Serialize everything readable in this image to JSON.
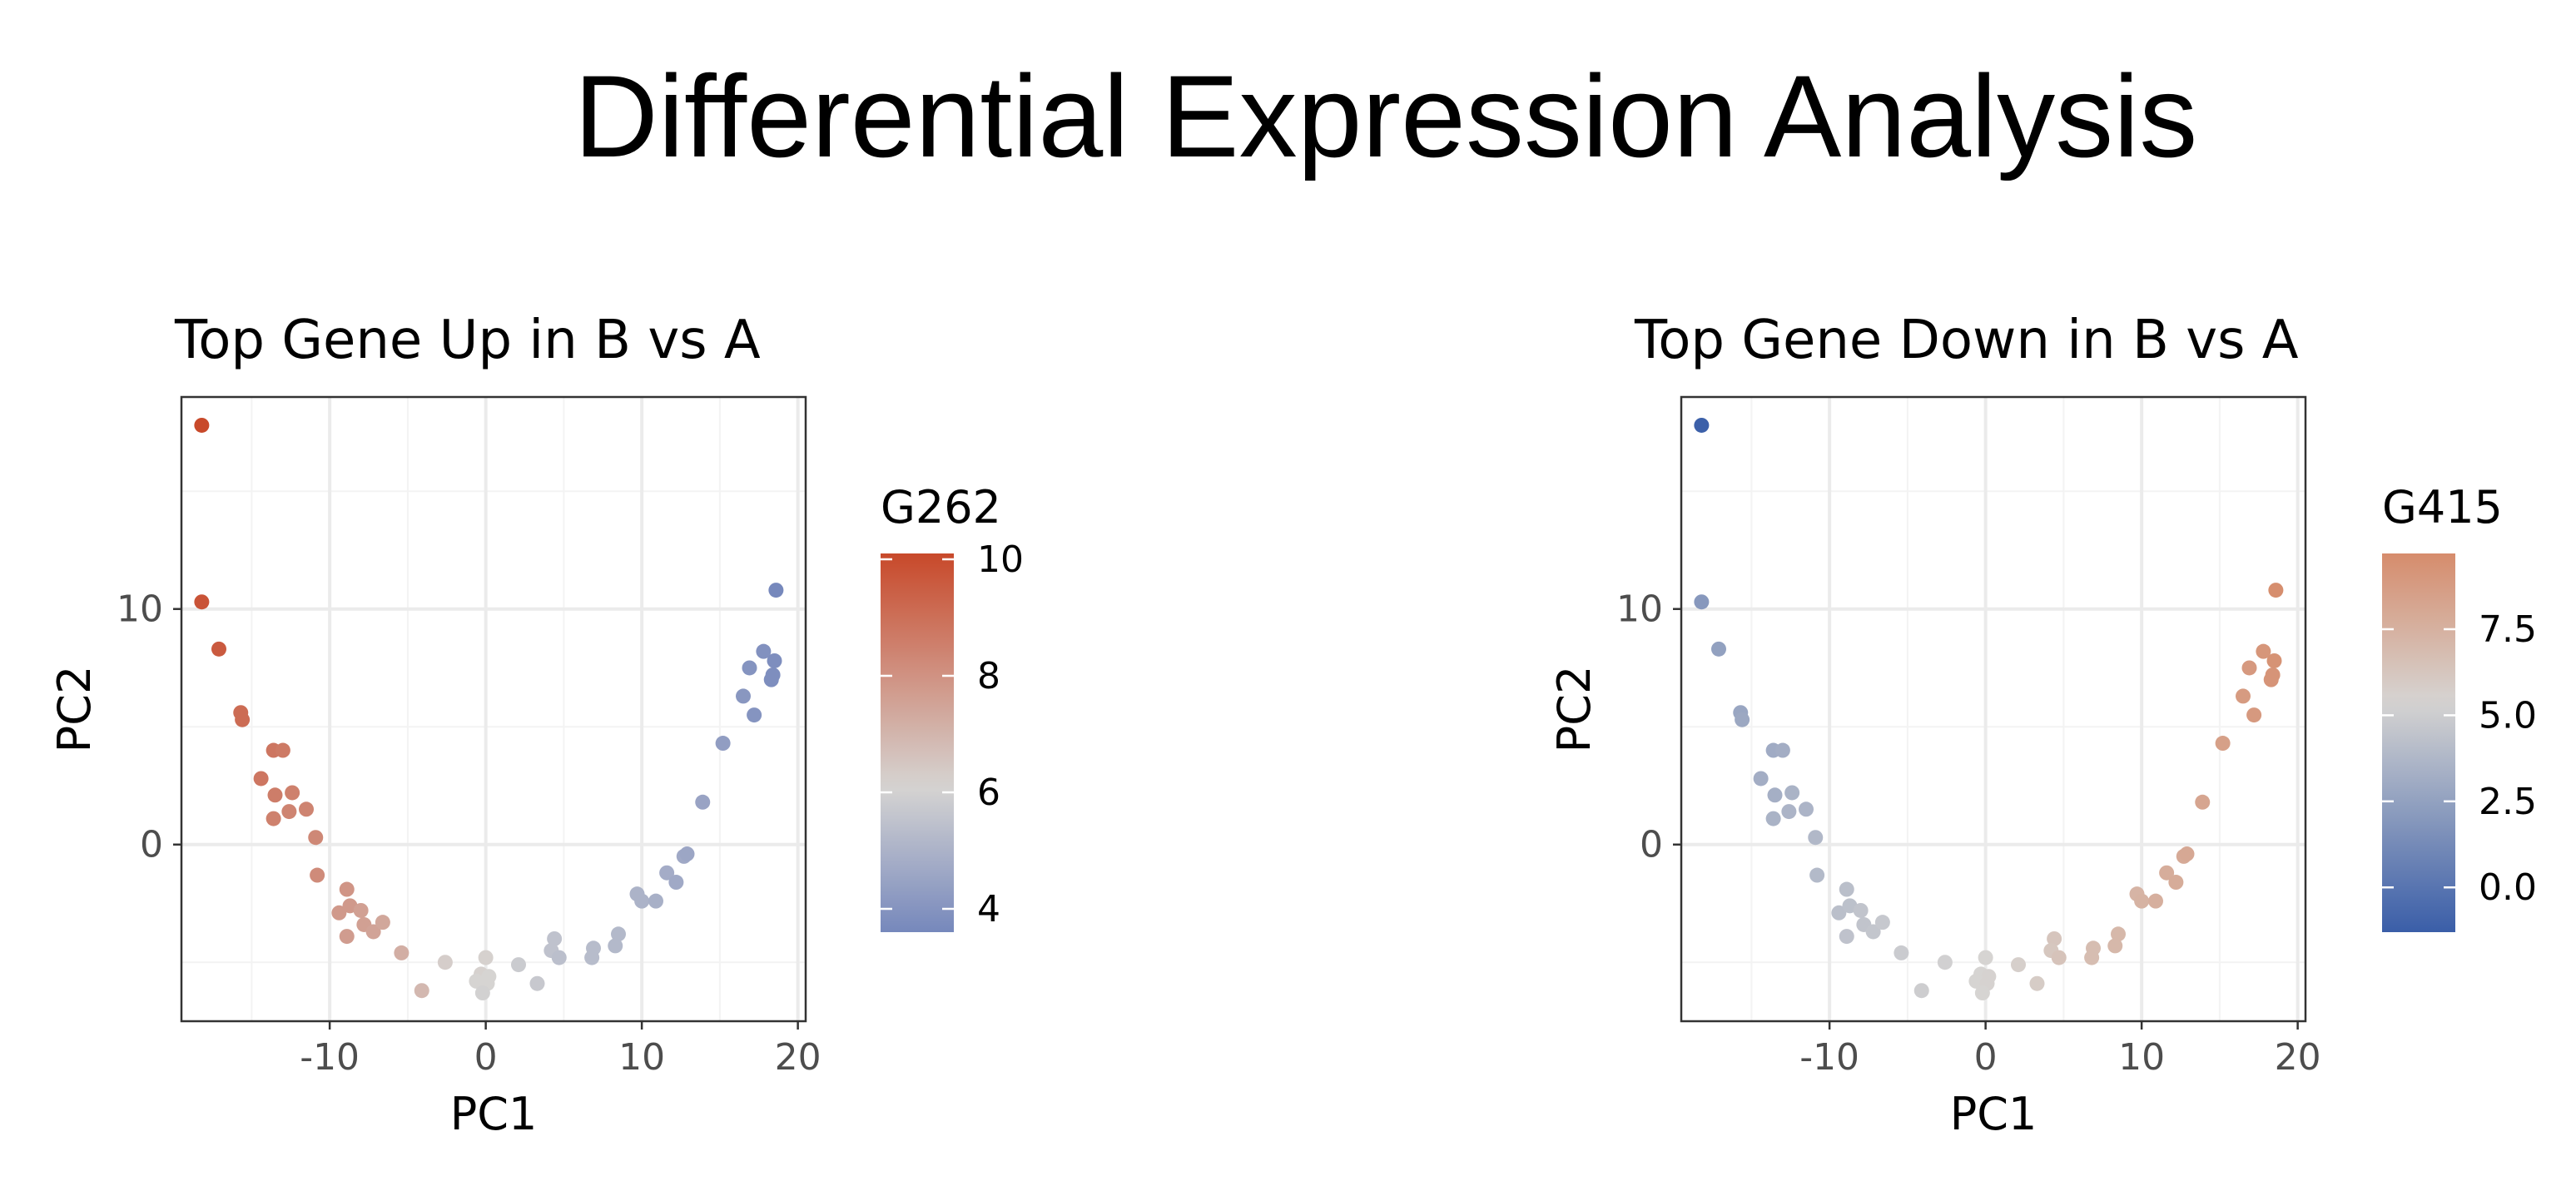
{
  "figure": {
    "title": "Differential Expression Analysis"
  },
  "colors": {
    "low": "#3A5EA8",
    "mid": "#D4D4D4",
    "high": "#C8492A",
    "grid_major": "#EBEBEB",
    "grid_minor": "#F3F3F3",
    "axis_text": "#4D4D4D",
    "panel_border": "#333333"
  },
  "chart_data": [
    {
      "type": "scatter",
      "title": "Top Gene Up in B vs A",
      "xlabel": "PC1",
      "ylabel": "PC2",
      "xlim": [
        -19.5,
        20.5
      ],
      "ylim": [
        -7.5,
        19
      ],
      "x_ticks": [
        -10,
        0,
        10,
        20
      ],
      "x_tick_labels": [
        "-10",
        "0",
        "10",
        "20"
      ],
      "y_ticks": [
        0,
        10
      ],
      "y_tick_labels": [
        "0",
        "10"
      ],
      "grid": true,
      "legend": {
        "title": "G262",
        "position": "right",
        "range": [
          3.6,
          10.1
        ],
        "gradient": {
          "low": "#7688BC",
          "mid": "#D6D4D2",
          "midpoint": 6.1,
          "high": "#C8492A"
        },
        "ticks": [
          4,
          6,
          8,
          10
        ],
        "tick_labels": [
          "4",
          "6",
          "8",
          "10"
        ]
      },
      "points": [
        {
          "x": -18.2,
          "y": 17.8,
          "v": 10.1
        },
        {
          "x": -18.2,
          "y": 10.3,
          "v": 9.8
        },
        {
          "x": -17.1,
          "y": 8.3,
          "v": 9.6
        },
        {
          "x": -15.7,
          "y": 5.6,
          "v": 9.1
        },
        {
          "x": -15.6,
          "y": 5.3,
          "v": 9.1
        },
        {
          "x": -14.4,
          "y": 2.8,
          "v": 8.8
        },
        {
          "x": -13.6,
          "y": 4.0,
          "v": 8.8
        },
        {
          "x": -13.0,
          "y": 4.0,
          "v": 8.7
        },
        {
          "x": -13.5,
          "y": 2.1,
          "v": 8.6
        },
        {
          "x": -12.4,
          "y": 2.2,
          "v": 8.5
        },
        {
          "x": -11.5,
          "y": 1.5,
          "v": 8.4
        },
        {
          "x": -12.6,
          "y": 1.4,
          "v": 8.4
        },
        {
          "x": -13.6,
          "y": 1.1,
          "v": 8.5
        },
        {
          "x": -10.9,
          "y": 0.3,
          "v": 8.3
        },
        {
          "x": -10.8,
          "y": -1.3,
          "v": 8.2
        },
        {
          "x": -8.9,
          "y": -1.9,
          "v": 7.9
        },
        {
          "x": -9.4,
          "y": -2.9,
          "v": 7.8
        },
        {
          "x": -8.7,
          "y": -2.6,
          "v": 7.8
        },
        {
          "x": -8.0,
          "y": -2.8,
          "v": 7.6
        },
        {
          "x": -7.8,
          "y": -3.4,
          "v": 7.6
        },
        {
          "x": -7.2,
          "y": -3.7,
          "v": 7.5
        },
        {
          "x": -6.6,
          "y": -3.3,
          "v": 7.4
        },
        {
          "x": -8.9,
          "y": -3.9,
          "v": 7.7
        },
        {
          "x": -5.4,
          "y": -4.6,
          "v": 7.2
        },
        {
          "x": -4.1,
          "y": -6.2,
          "v": 6.9
        },
        {
          "x": -2.6,
          "y": -5.0,
          "v": 6.3
        },
        {
          "x": 0.0,
          "y": -4.8,
          "v": 6.2
        },
        {
          "x": -0.3,
          "y": -5.5,
          "v": 6.2
        },
        {
          "x": 0.2,
          "y": -5.6,
          "v": 6.1
        },
        {
          "x": -0.6,
          "y": -5.8,
          "v": 6.1
        },
        {
          "x": 0.1,
          "y": -5.9,
          "v": 6.1
        },
        {
          "x": -0.2,
          "y": -6.3,
          "v": 6.0
        },
        {
          "x": 2.1,
          "y": -5.1,
          "v": 5.8
        },
        {
          "x": 3.3,
          "y": -5.9,
          "v": 5.7
        },
        {
          "x": 4.4,
          "y": -4.0,
          "v": 5.5
        },
        {
          "x": 4.2,
          "y": -4.5,
          "v": 5.5
        },
        {
          "x": 4.7,
          "y": -4.8,
          "v": 5.4
        },
        {
          "x": 6.9,
          "y": -4.4,
          "v": 5.3
        },
        {
          "x": 6.8,
          "y": -4.8,
          "v": 5.3
        },
        {
          "x": 8.5,
          "y": -3.8,
          "v": 5.2
        },
        {
          "x": 8.3,
          "y": -4.3,
          "v": 5.2
        },
        {
          "x": 9.7,
          "y": -2.1,
          "v": 5.0
        },
        {
          "x": 10.0,
          "y": -2.4,
          "v": 5.0
        },
        {
          "x": 10.9,
          "y": -2.4,
          "v": 4.9
        },
        {
          "x": 11.6,
          "y": -1.2,
          "v": 4.8
        },
        {
          "x": 12.2,
          "y": -1.6,
          "v": 4.7
        },
        {
          "x": 12.7,
          "y": -0.5,
          "v": 4.7
        },
        {
          "x": 12.9,
          "y": -0.4,
          "v": 4.6
        },
        {
          "x": 13.9,
          "y": 1.8,
          "v": 4.5
        },
        {
          "x": 15.2,
          "y": 4.3,
          "v": 4.3
        },
        {
          "x": 16.5,
          "y": 6.3,
          "v": 4.1
        },
        {
          "x": 16.9,
          "y": 7.5,
          "v": 4.0
        },
        {
          "x": 17.2,
          "y": 5.5,
          "v": 4.0
        },
        {
          "x": 17.8,
          "y": 8.2,
          "v": 3.9
        },
        {
          "x": 18.3,
          "y": 7.0,
          "v": 3.8
        },
        {
          "x": 18.4,
          "y": 7.2,
          "v": 3.8
        },
        {
          "x": 18.5,
          "y": 7.8,
          "v": 3.8
        },
        {
          "x": 18.6,
          "y": 10.8,
          "v": 3.6
        }
      ]
    },
    {
      "type": "scatter",
      "title": "Top Gene Down in B vs A",
      "xlabel": "PC1",
      "ylabel": "PC2",
      "xlim": [
        -19.5,
        20.5
      ],
      "ylim": [
        -7.5,
        19
      ],
      "x_ticks": [
        -10,
        0,
        10,
        20
      ],
      "x_tick_labels": [
        "-10",
        "0",
        "10",
        "20"
      ],
      "y_ticks": [
        0,
        10
      ],
      "y_tick_labels": [
        "0",
        "10"
      ],
      "grid": true,
      "legend": {
        "title": "G415",
        "position": "right",
        "range": [
          -1.3,
          9.7
        ],
        "gradient": {
          "low": "#3A5EA8",
          "mid": "#D6D4D2",
          "midpoint": 5.4,
          "high": "#D68C6C"
        },
        "ticks": [
          0.0,
          2.5,
          5.0,
          7.5
        ],
        "tick_labels": [
          "0.0",
          "2.5",
          "5.0",
          "7.5"
        ]
      },
      "points": [
        {
          "x": -18.2,
          "y": 17.8,
          "v": -1.2
        },
        {
          "x": -18.2,
          "y": 10.3,
          "v": 2.0
        },
        {
          "x": -17.1,
          "y": 8.3,
          "v": 2.5
        },
        {
          "x": -15.7,
          "y": 5.6,
          "v": 2.8
        },
        {
          "x": -15.6,
          "y": 5.3,
          "v": 2.9
        },
        {
          "x": -14.4,
          "y": 2.8,
          "v": 3.2
        },
        {
          "x": -13.6,
          "y": 4.0,
          "v": 3.1
        },
        {
          "x": -13.0,
          "y": 4.0,
          "v": 3.2
        },
        {
          "x": -13.5,
          "y": 2.1,
          "v": 3.3
        },
        {
          "x": -12.4,
          "y": 2.2,
          "v": 3.5
        },
        {
          "x": -11.5,
          "y": 1.5,
          "v": 3.6
        },
        {
          "x": -12.6,
          "y": 1.4,
          "v": 3.6
        },
        {
          "x": -13.6,
          "y": 1.1,
          "v": 3.5
        },
        {
          "x": -10.9,
          "y": 0.3,
          "v": 3.8
        },
        {
          "x": -10.8,
          "y": -1.3,
          "v": 3.9
        },
        {
          "x": -8.9,
          "y": -1.9,
          "v": 4.2
        },
        {
          "x": -9.4,
          "y": -2.9,
          "v": 4.2
        },
        {
          "x": -8.7,
          "y": -2.6,
          "v": 4.3
        },
        {
          "x": -8.0,
          "y": -2.8,
          "v": 4.5
        },
        {
          "x": -7.8,
          "y": -3.4,
          "v": 4.5
        },
        {
          "x": -7.2,
          "y": -3.7,
          "v": 4.6
        },
        {
          "x": -6.6,
          "y": -3.3,
          "v": 4.7
        },
        {
          "x": -8.9,
          "y": -3.9,
          "v": 4.4
        },
        {
          "x": -5.4,
          "y": -4.6,
          "v": 4.9
        },
        {
          "x": -4.1,
          "y": -6.2,
          "v": 5.0
        },
        {
          "x": -2.6,
          "y": -5.0,
          "v": 5.2
        },
        {
          "x": 0.0,
          "y": -4.8,
          "v": 5.4
        },
        {
          "x": -0.3,
          "y": -5.5,
          "v": 5.4
        },
        {
          "x": 0.2,
          "y": -5.6,
          "v": 5.5
        },
        {
          "x": -0.6,
          "y": -5.8,
          "v": 5.4
        },
        {
          "x": 0.1,
          "y": -5.9,
          "v": 5.5
        },
        {
          "x": -0.2,
          "y": -6.3,
          "v": 5.4
        },
        {
          "x": 2.1,
          "y": -5.1,
          "v": 5.7
        },
        {
          "x": 3.3,
          "y": -5.9,
          "v": 5.9
        },
        {
          "x": 4.4,
          "y": -4.0,
          "v": 6.3
        },
        {
          "x": 4.2,
          "y": -4.5,
          "v": 6.2
        },
        {
          "x": 4.7,
          "y": -4.8,
          "v": 6.4
        },
        {
          "x": 6.9,
          "y": -4.4,
          "v": 6.8
        },
        {
          "x": 6.8,
          "y": -4.8,
          "v": 6.8
        },
        {
          "x": 8.5,
          "y": -3.8,
          "v": 7.1
        },
        {
          "x": 8.3,
          "y": -4.3,
          "v": 7.1
        },
        {
          "x": 9.7,
          "y": -2.1,
          "v": 7.3
        },
        {
          "x": 10.0,
          "y": -2.4,
          "v": 7.4
        },
        {
          "x": 10.9,
          "y": -2.4,
          "v": 7.6
        },
        {
          "x": 11.6,
          "y": -1.2,
          "v": 7.7
        },
        {
          "x": 12.2,
          "y": -1.6,
          "v": 7.8
        },
        {
          "x": 12.7,
          "y": -0.5,
          "v": 7.9
        },
        {
          "x": 12.9,
          "y": -0.4,
          "v": 8.0
        },
        {
          "x": 13.9,
          "y": 1.8,
          "v": 8.2
        },
        {
          "x": 15.2,
          "y": 4.3,
          "v": 8.5
        },
        {
          "x": 16.5,
          "y": 6.3,
          "v": 8.8
        },
        {
          "x": 16.9,
          "y": 7.5,
          "v": 8.9
        },
        {
          "x": 17.2,
          "y": 5.5,
          "v": 8.9
        },
        {
          "x": 17.8,
          "y": 8.2,
          "v": 9.1
        },
        {
          "x": 18.3,
          "y": 7.0,
          "v": 9.2
        },
        {
          "x": 18.4,
          "y": 7.2,
          "v": 9.2
        },
        {
          "x": 18.5,
          "y": 7.8,
          "v": 9.3
        },
        {
          "x": 18.6,
          "y": 10.8,
          "v": 9.6
        }
      ]
    }
  ]
}
